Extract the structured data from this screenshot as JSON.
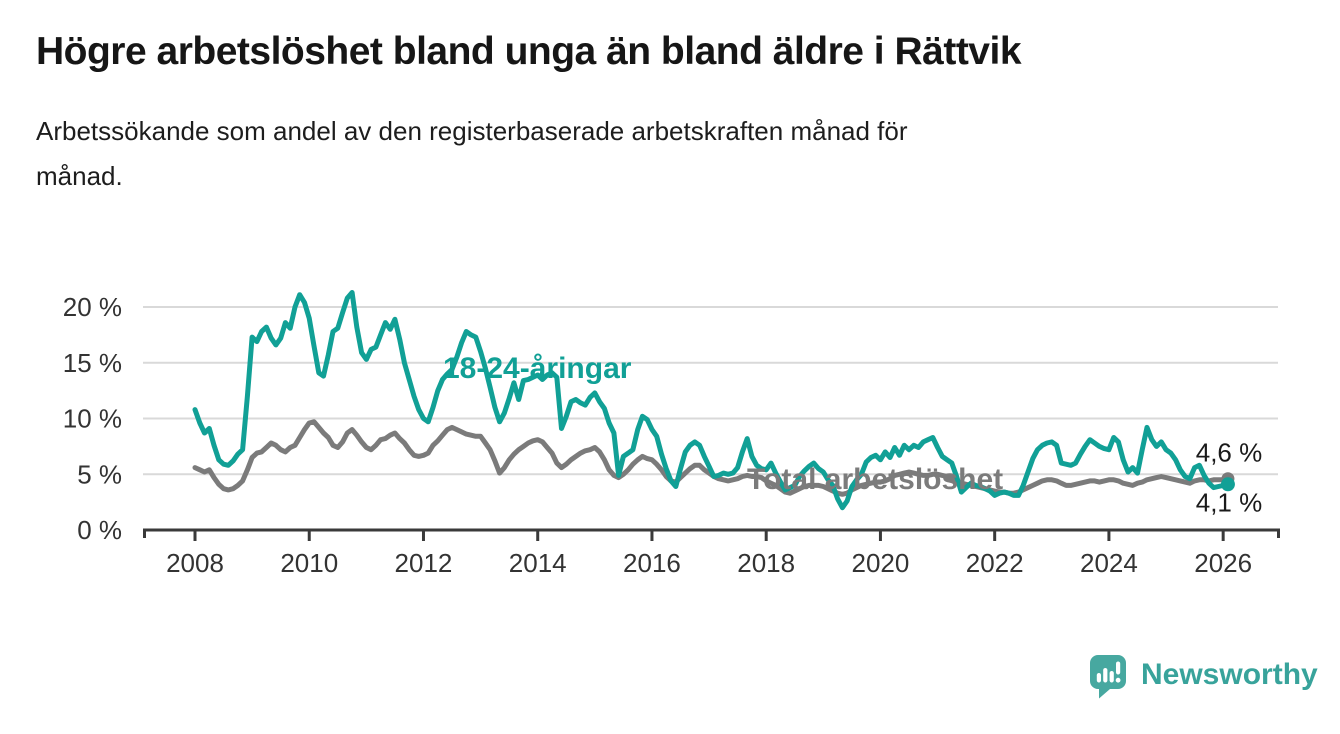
{
  "header": {
    "title": "Högre arbetslöshet bland unga än bland äldre i Rättvik",
    "subtitle_lines": [
      "Arbetssökande som andel av den registerbaserade arbetskraften månad för",
      "månad."
    ]
  },
  "footer": {
    "brand": "Newsworthy",
    "logo_icon": "speech-bubble-bar-chart-icon"
  },
  "colors": {
    "young_line": "#11A096",
    "total_line": "#7B7B7B",
    "grid": "#D9D9D9",
    "axis": "#3A3A3A",
    "tick_text": "#333333",
    "value_label_text": "#1A1A1A",
    "brand_badge": "#47A8A0",
    "brand_text": "#38A39B"
  },
  "chart_data": {
    "type": "line",
    "unit": "%",
    "frequency": "monthly",
    "x_start": "2008-01",
    "x_end": "2026-02",
    "grid": true,
    "ylim": [
      0,
      22
    ],
    "x_ticks": [
      {
        "label": "2008",
        "year": 2008
      },
      {
        "label": "2010",
        "year": 2010
      },
      {
        "label": "2012",
        "year": 2012
      },
      {
        "label": "2014",
        "year": 2014
      },
      {
        "label": "2016",
        "year": 2016
      },
      {
        "label": "2018",
        "year": 2018
      },
      {
        "label": "2020",
        "year": 2020
      },
      {
        "label": "2022",
        "year": 2022
      },
      {
        "label": "2024",
        "year": 2024
      },
      {
        "label": "2026",
        "year": 2026
      }
    ],
    "y_ticks": [
      {
        "label": "0 %",
        "value": 0
      },
      {
        "label": "5 %",
        "value": 5
      },
      {
        "label": "10 %",
        "value": 10
      },
      {
        "label": "15 %",
        "value": 15
      },
      {
        "label": "20 %",
        "value": 20
      }
    ],
    "series": [
      {
        "name": "18-24-åringar",
        "color_key": "young_line",
        "end_label": "4,1 %",
        "latest_value": 4.1,
        "values": [
          10.8,
          9.6,
          8.7,
          9.1,
          7.6,
          6.3,
          5.9,
          5.8,
          6.2,
          6.8,
          7.2,
          12.0,
          17.3,
          16.9,
          17.8,
          18.2,
          17.2,
          16.6,
          17.2,
          18.6,
          18.1,
          20.0,
          21.1,
          20.4,
          19.0,
          16.5,
          14.1,
          13.8,
          15.7,
          17.8,
          18.1,
          19.5,
          20.8,
          21.3,
          18.2,
          15.9,
          15.3,
          16.2,
          16.4,
          17.5,
          18.6,
          18.0,
          18.9,
          17.1,
          15.0,
          13.5,
          12.0,
          10.8,
          10.0,
          9.7,
          11.0,
          12.5,
          13.5,
          14.0,
          14.4,
          15.5,
          16.8,
          17.8,
          17.5,
          17.3,
          16.0,
          14.5,
          12.8,
          11.0,
          9.7,
          10.5,
          11.8,
          13.2,
          11.7,
          13.4,
          13.5,
          13.7,
          13.9,
          13.5,
          13.9,
          14.1,
          13.7,
          9.1,
          10.2,
          11.5,
          11.7,
          11.4,
          11.2,
          11.9,
          12.3,
          11.5,
          10.9,
          9.6,
          8.7,
          4.9,
          6.6,
          6.9,
          7.2,
          9.0,
          10.2,
          9.9,
          9.0,
          8.4,
          6.8,
          5.5,
          4.4,
          3.9,
          5.5,
          7.0,
          7.6,
          7.9,
          7.6,
          6.6,
          5.7,
          4.8,
          4.9,
          5.1,
          5.0,
          5.1,
          5.6,
          7.0,
          8.2,
          6.6,
          5.8,
          5.5,
          5.4,
          6.0,
          5.1,
          4.3,
          3.6,
          3.8,
          4.0,
          4.8,
          5.3,
          5.7,
          6.0,
          5.5,
          5.2,
          4.5,
          4.0,
          2.8,
          2.0,
          2.6,
          3.9,
          4.5,
          5.0,
          6.1,
          6.5,
          6.7,
          6.3,
          7.0,
          6.5,
          7.4,
          6.7,
          7.6,
          7.2,
          7.6,
          7.4,
          7.9,
          8.1,
          8.3,
          7.4,
          6.6,
          6.3,
          6.0,
          4.8,
          3.4,
          3.8,
          4.2,
          4.0,
          3.9,
          3.7,
          3.5,
          3.1,
          3.3,
          3.4,
          3.3,
          3.1,
          3.1,
          4.0,
          5.2,
          6.4,
          7.2,
          7.6,
          7.8,
          7.9,
          7.6,
          6.0,
          5.9,
          5.8,
          6.0,
          6.8,
          7.5,
          8.1,
          7.8,
          7.5,
          7.3,
          7.2,
          8.3,
          7.9,
          6.3,
          5.2,
          5.6,
          5.1,
          7.2,
          9.2,
          8.1,
          7.5,
          7.9,
          7.2,
          6.9,
          6.3,
          5.4,
          4.8,
          4.6,
          5.6,
          5.8,
          4.9,
          4.2,
          3.8,
          3.9,
          4.0,
          4.1
        ]
      },
      {
        "name": "Total arbetslöshet",
        "color_key": "total_line",
        "end_label": "4,6 %",
        "latest_value": 4.6,
        "values": [
          5.6,
          5.4,
          5.2,
          5.4,
          4.7,
          4.1,
          3.7,
          3.6,
          3.7,
          4.0,
          4.4,
          5.4,
          6.5,
          6.9,
          7.0,
          7.4,
          7.8,
          7.6,
          7.2,
          7.0,
          7.4,
          7.6,
          8.3,
          9.0,
          9.6,
          9.7,
          9.2,
          8.7,
          8.3,
          7.6,
          7.4,
          7.9,
          8.7,
          9.0,
          8.5,
          7.9,
          7.4,
          7.2,
          7.6,
          8.1,
          8.2,
          8.5,
          8.7,
          8.2,
          7.8,
          7.2,
          6.7,
          6.6,
          6.7,
          6.9,
          7.6,
          8.0,
          8.5,
          9.0,
          9.2,
          9.0,
          8.8,
          8.6,
          8.5,
          8.4,
          8.4,
          7.8,
          7.2,
          6.2,
          5.1,
          5.6,
          6.3,
          6.8,
          7.2,
          7.5,
          7.8,
          8.0,
          8.1,
          7.9,
          7.4,
          6.9,
          6.0,
          5.6,
          5.9,
          6.3,
          6.6,
          6.9,
          7.1,
          7.2,
          7.4,
          7.0,
          6.3,
          5.4,
          4.9,
          4.7,
          5.0,
          5.4,
          5.9,
          6.3,
          6.6,
          6.4,
          6.3,
          5.9,
          5.4,
          4.8,
          4.4,
          4.3,
          4.7,
          5.1,
          5.5,
          5.8,
          5.8,
          5.4,
          5.1,
          4.8,
          4.6,
          4.5,
          4.4,
          4.5,
          4.6,
          4.8,
          4.9,
          4.8,
          4.8,
          4.7,
          4.4,
          4.2,
          4.0,
          3.7,
          3.4,
          3.3,
          3.5,
          3.7,
          3.9,
          4.0,
          4.0,
          4.0,
          3.9,
          3.7,
          3.5,
          3.3,
          3.2,
          3.3,
          3.6,
          3.8,
          4.0,
          4.1,
          4.2,
          4.3,
          4.3,
          4.4,
          4.6,
          4.9,
          5.0,
          5.1,
          5.2,
          5.1,
          5.0,
          4.9,
          4.9,
          5.0,
          5.0,
          4.9,
          4.8,
          4.6,
          4.4,
          4.2,
          4.1,
          4.0,
          3.9,
          3.8,
          3.7,
          3.6,
          3.5,
          3.4,
          3.4,
          3.3,
          3.3,
          3.4,
          3.6,
          3.8,
          4.0,
          4.2,
          4.4,
          4.5,
          4.5,
          4.4,
          4.2,
          4.0,
          4.0,
          4.1,
          4.2,
          4.3,
          4.4,
          4.4,
          4.3,
          4.4,
          4.5,
          4.5,
          4.4,
          4.2,
          4.1,
          4.0,
          4.2,
          4.3,
          4.5,
          4.6,
          4.7,
          4.8,
          4.7,
          4.6,
          4.5,
          4.4,
          4.3,
          4.2,
          4.4,
          4.5,
          4.5,
          4.4,
          4.5,
          4.5,
          4.5,
          4.6
        ]
      }
    ]
  }
}
